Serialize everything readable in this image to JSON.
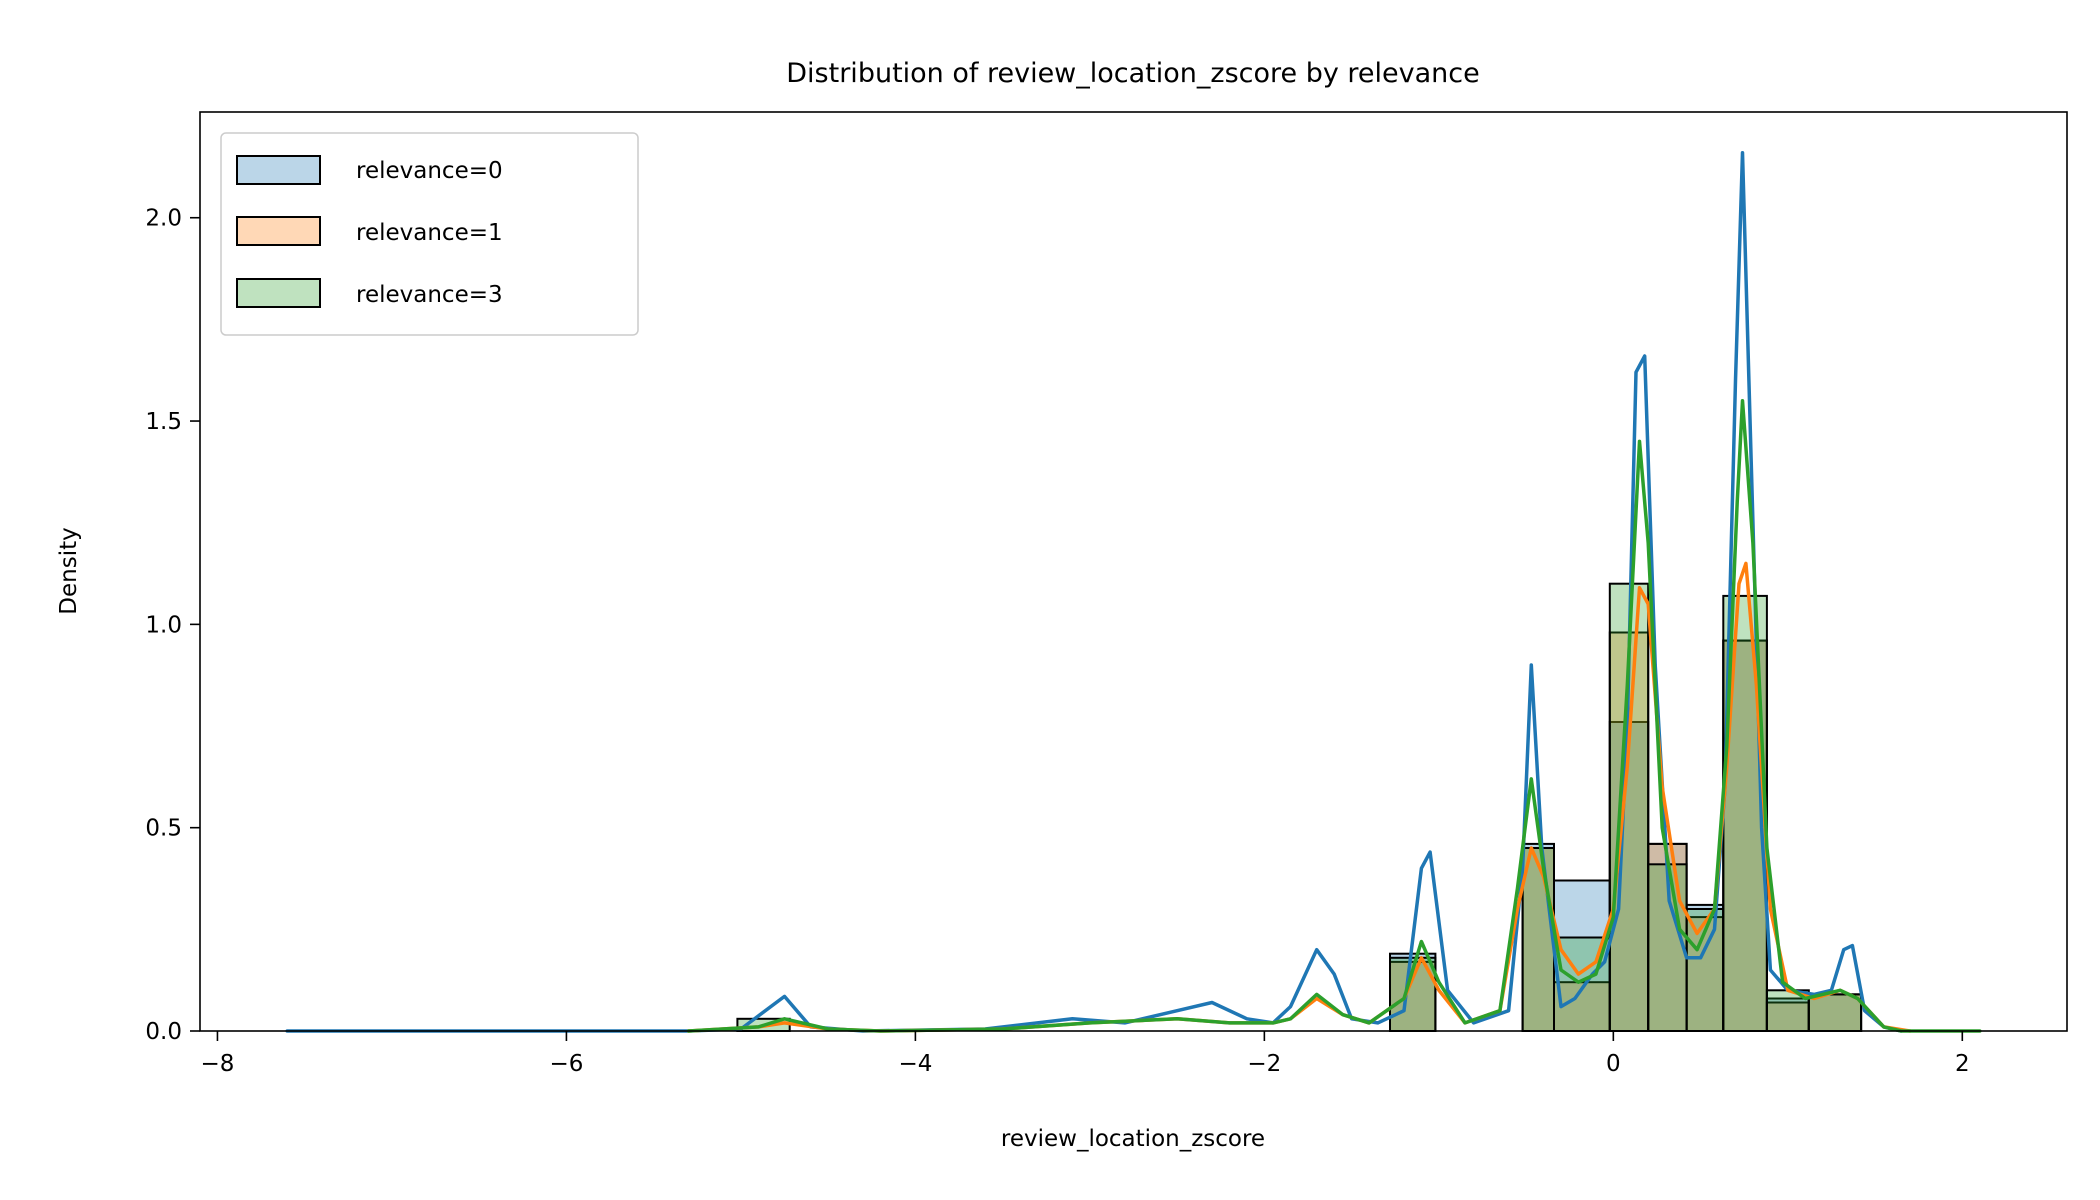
{
  "chart_data": {
    "type": "histogram+kde",
    "title": "Distribution of review_location_zscore by relevance",
    "xlabel": "review_location_zscore",
    "ylabel": "Density",
    "xlim": [
      -8.1,
      2.6
    ],
    "ylim": [
      0,
      2.26
    ],
    "xticks": [
      -8,
      -6,
      -4,
      -2,
      0,
      2
    ],
    "xtick_labels": [
      "−8",
      "−6",
      "−4",
      "−2",
      "0",
      "2"
    ],
    "yticks": [
      0,
      0.5,
      1.0,
      1.5,
      2.0
    ],
    "ytick_labels": [
      "0.0",
      "0.5",
      "1.0",
      "1.5",
      "2.0"
    ],
    "grid": false,
    "legend_position": "top-left",
    "series": [
      {
        "name": "relevance=0",
        "color": "#1f77b4",
        "bins": [
          [
            -1.28,
            -1.02,
            0.19
          ],
          [
            -0.52,
            -0.34,
            0.46
          ],
          [
            -0.34,
            -0.02,
            0.37
          ],
          [
            -0.02,
            0.2,
            0.76
          ],
          [
            0.2,
            0.42,
            0.46
          ],
          [
            0.42,
            0.63,
            0.31
          ],
          [
            0.63,
            0.88,
            0.96
          ],
          [
            0.88,
            1.12,
            0.08
          ],
          [
            1.12,
            1.42,
            0.09
          ]
        ],
        "kde": [
          [
            -7.6,
            0
          ],
          [
            -5.3,
            0
          ],
          [
            -5.0,
            0.005
          ],
          [
            -4.75,
            0.085
          ],
          [
            -4.6,
            0.01
          ],
          [
            -4.3,
            0
          ],
          [
            -3.6,
            0.005
          ],
          [
            -3.3,
            0.02
          ],
          [
            -3.1,
            0.03
          ],
          [
            -2.8,
            0.02
          ],
          [
            -2.5,
            0.05
          ],
          [
            -2.3,
            0.07
          ],
          [
            -2.1,
            0.03
          ],
          [
            -1.95,
            0.02
          ],
          [
            -1.85,
            0.06
          ],
          [
            -1.7,
            0.2
          ],
          [
            -1.6,
            0.14
          ],
          [
            -1.5,
            0.03
          ],
          [
            -1.35,
            0.02
          ],
          [
            -1.2,
            0.05
          ],
          [
            -1.1,
            0.4
          ],
          [
            -1.05,
            0.44
          ],
          [
            -0.95,
            0.1
          ],
          [
            -0.8,
            0.02
          ],
          [
            -0.6,
            0.05
          ],
          [
            -0.52,
            0.4
          ],
          [
            -0.47,
            0.9
          ],
          [
            -0.41,
            0.45
          ],
          [
            -0.3,
            0.06
          ],
          [
            -0.22,
            0.08
          ],
          [
            -0.12,
            0.14
          ],
          [
            -0.05,
            0.17
          ],
          [
            0.03,
            0.3
          ],
          [
            0.08,
            0.75
          ],
          [
            0.13,
            1.62
          ],
          [
            0.18,
            1.66
          ],
          [
            0.24,
            0.9
          ],
          [
            0.32,
            0.32
          ],
          [
            0.42,
            0.18
          ],
          [
            0.5,
            0.18
          ],
          [
            0.58,
            0.25
          ],
          [
            0.64,
            0.6
          ],
          [
            0.7,
            1.6
          ],
          [
            0.74,
            2.16
          ],
          [
            0.79,
            1.4
          ],
          [
            0.85,
            0.5
          ],
          [
            0.9,
            0.15
          ],
          [
            1.0,
            0.1
          ],
          [
            1.15,
            0.09
          ],
          [
            1.25,
            0.1
          ],
          [
            1.32,
            0.2
          ],
          [
            1.37,
            0.21
          ],
          [
            1.44,
            0.05
          ],
          [
            1.55,
            0.01
          ],
          [
            1.65,
            0
          ]
        ]
      },
      {
        "name": "relevance=1",
        "color": "#ff7f0e",
        "bins": [
          [
            -1.28,
            -1.02,
            0.17
          ],
          [
            -0.52,
            -0.34,
            0.45
          ],
          [
            -0.34,
            -0.02,
            0.12
          ],
          [
            -0.02,
            0.2,
            0.98
          ],
          [
            0.2,
            0.42,
            0.46
          ],
          [
            0.42,
            0.63,
            0.28
          ],
          [
            0.63,
            0.88,
            0.96
          ],
          [
            0.88,
            1.12,
            0.07
          ],
          [
            1.12,
            1.42,
            0.09
          ]
        ],
        "kde": [
          [
            -5.3,
            0
          ],
          [
            -4.9,
            0.01
          ],
          [
            -4.75,
            0.02
          ],
          [
            -4.5,
            0.005
          ],
          [
            -4.2,
            0
          ],
          [
            -3.5,
            0.005
          ],
          [
            -3.0,
            0.02
          ],
          [
            -2.5,
            0.03
          ],
          [
            -2.2,
            0.02
          ],
          [
            -1.95,
            0.02
          ],
          [
            -1.85,
            0.03
          ],
          [
            -1.7,
            0.08
          ],
          [
            -1.55,
            0.04
          ],
          [
            -1.4,
            0.02
          ],
          [
            -1.2,
            0.08
          ],
          [
            -1.1,
            0.18
          ],
          [
            -1.0,
            0.1
          ],
          [
            -0.85,
            0.02
          ],
          [
            -0.65,
            0.05
          ],
          [
            -0.55,
            0.3
          ],
          [
            -0.47,
            0.45
          ],
          [
            -0.4,
            0.38
          ],
          [
            -0.3,
            0.2
          ],
          [
            -0.2,
            0.14
          ],
          [
            -0.1,
            0.17
          ],
          [
            0.0,
            0.3
          ],
          [
            0.08,
            0.65
          ],
          [
            0.15,
            1.09
          ],
          [
            0.2,
            1.05
          ],
          [
            0.28,
            0.6
          ],
          [
            0.38,
            0.32
          ],
          [
            0.48,
            0.24
          ],
          [
            0.58,
            0.3
          ],
          [
            0.65,
            0.65
          ],
          [
            0.72,
            1.1
          ],
          [
            0.76,
            1.15
          ],
          [
            0.82,
            0.85
          ],
          [
            0.9,
            0.3
          ],
          [
            1.0,
            0.1
          ],
          [
            1.15,
            0.08
          ],
          [
            1.3,
            0.1
          ],
          [
            1.4,
            0.08
          ],
          [
            1.55,
            0.01
          ],
          [
            1.7,
            0
          ]
        ]
      },
      {
        "name": "relevance=3",
        "color": "#2ca02c",
        "bins": [
          [
            -5.02,
            -4.72,
            0.03
          ],
          [
            -1.28,
            -1.02,
            0.18
          ],
          [
            -0.52,
            -0.34,
            0.45
          ],
          [
            -0.34,
            -0.02,
            0.23
          ],
          [
            -0.02,
            0.2,
            1.1
          ],
          [
            0.2,
            0.42,
            0.41
          ],
          [
            0.42,
            0.63,
            0.3
          ],
          [
            0.63,
            0.88,
            1.07
          ],
          [
            0.88,
            1.12,
            0.1
          ],
          [
            1.12,
            1.42,
            0.09
          ]
        ],
        "kde": [
          [
            -5.3,
            0
          ],
          [
            -4.9,
            0.01
          ],
          [
            -4.75,
            0.03
          ],
          [
            -4.5,
            0.005
          ],
          [
            -4.2,
            0
          ],
          [
            -3.5,
            0.005
          ],
          [
            -3.0,
            0.02
          ],
          [
            -2.5,
            0.03
          ],
          [
            -2.2,
            0.02
          ],
          [
            -1.95,
            0.02
          ],
          [
            -1.85,
            0.03
          ],
          [
            -1.7,
            0.09
          ],
          [
            -1.55,
            0.04
          ],
          [
            -1.4,
            0.02
          ],
          [
            -1.2,
            0.08
          ],
          [
            -1.1,
            0.22
          ],
          [
            -1.0,
            0.12
          ],
          [
            -0.85,
            0.02
          ],
          [
            -0.65,
            0.05
          ],
          [
            -0.55,
            0.35
          ],
          [
            -0.47,
            0.62
          ],
          [
            -0.4,
            0.4
          ],
          [
            -0.3,
            0.15
          ],
          [
            -0.2,
            0.12
          ],
          [
            -0.1,
            0.14
          ],
          [
            0.0,
            0.28
          ],
          [
            0.08,
            0.85
          ],
          [
            0.15,
            1.45
          ],
          [
            0.2,
            1.2
          ],
          [
            0.28,
            0.5
          ],
          [
            0.38,
            0.25
          ],
          [
            0.48,
            0.2
          ],
          [
            0.58,
            0.3
          ],
          [
            0.65,
            0.7
          ],
          [
            0.71,
            1.3
          ],
          [
            0.74,
            1.55
          ],
          [
            0.8,
            1.2
          ],
          [
            0.88,
            0.45
          ],
          [
            0.97,
            0.12
          ],
          [
            1.1,
            0.08
          ],
          [
            1.3,
            0.1
          ],
          [
            1.4,
            0.08
          ],
          [
            1.55,
            0.01
          ],
          [
            1.65,
            0
          ],
          [
            2.1,
            0
          ]
        ]
      }
    ]
  }
}
